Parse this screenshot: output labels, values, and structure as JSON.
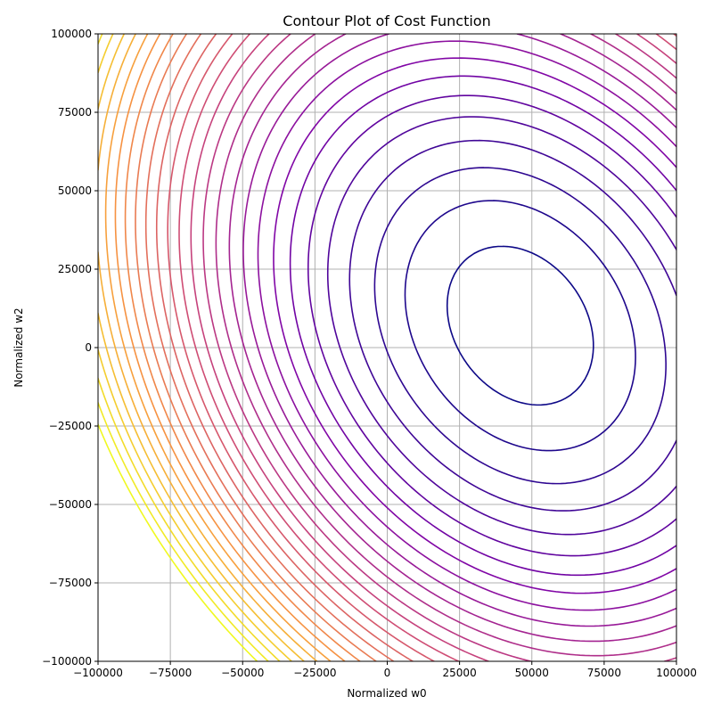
{
  "chart_data": {
    "type": "contour",
    "title": "Contour Plot of Cost Function",
    "xlabel": "Normalized w0",
    "ylabel": "Normalized w2",
    "xlim": [
      -100000,
      100000
    ],
    "ylim": [
      -100000,
      100000
    ],
    "xticks": [
      -100000,
      -75000,
      -50000,
      -25000,
      0,
      25000,
      50000,
      75000,
      100000
    ],
    "yticks": [
      -100000,
      -75000,
      -50000,
      -25000,
      0,
      25000,
      50000,
      75000,
      100000
    ],
    "xtick_labels": [
      "−100000",
      "−75000",
      "−50000",
      "−25000",
      "0",
      "25000",
      "50000",
      "75000",
      "100000"
    ],
    "ytick_labels": [
      "−100000",
      "−75000",
      "−50000",
      "−25000",
      "0",
      "25000",
      "50000",
      "75000",
      "100000"
    ],
    "grid": true,
    "colormap": "plasma",
    "function_center": [
      46000,
      7000
    ],
    "function_quadratic": [
      1.0,
      0.5,
      1.0
    ],
    "level_count": 28,
    "min_level_span": 0.06,
    "max_level_span": 2.46,
    "colors": {
      "low": "#0d0887",
      "mid": "#9c179e",
      "high": "#f0f921",
      "grid": "#b0b0b0",
      "axis": "#000000"
    }
  }
}
